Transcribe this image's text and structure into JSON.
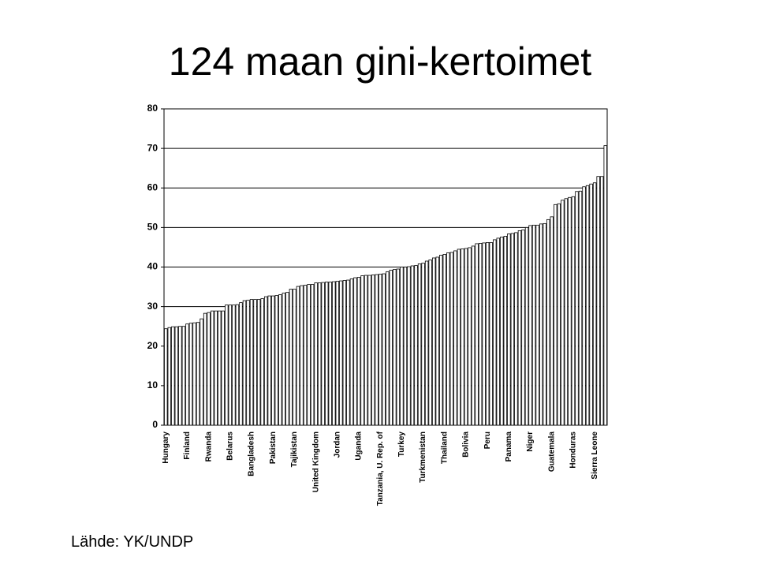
{
  "chart_data": {
    "type": "bar",
    "title": "124 maan gini-kertoimet",
    "source": "Lähde: YK/UNDP",
    "categories": [
      "Hungary",
      null,
      null,
      null,
      null,
      null,
      "Finland",
      null,
      null,
      null,
      null,
      null,
      "Rwanda",
      null,
      null,
      null,
      null,
      null,
      "Belarus",
      null,
      null,
      null,
      null,
      null,
      "Bangladesh",
      null,
      null,
      null,
      null,
      null,
      "Pakistan",
      null,
      null,
      null,
      null,
      null,
      "Tajikistan",
      null,
      null,
      null,
      null,
      null,
      "United Kingdom",
      null,
      null,
      null,
      null,
      null,
      "Jordan",
      null,
      null,
      null,
      null,
      null,
      "Uganda",
      null,
      null,
      null,
      null,
      null,
      "Tanzania, U. Rep. of",
      null,
      null,
      null,
      null,
      null,
      "Turkey",
      null,
      null,
      null,
      null,
      null,
      "Turkmenistan",
      null,
      null,
      null,
      null,
      null,
      "Thailand",
      null,
      null,
      null,
      null,
      null,
      "Bolivia",
      null,
      null,
      null,
      null,
      null,
      "Peru",
      null,
      null,
      null,
      null,
      null,
      "Panama",
      null,
      null,
      null,
      null,
      null,
      "Niger",
      null,
      null,
      null,
      null,
      null,
      "Guatemala",
      null,
      null,
      null,
      null,
      null,
      "Honduras",
      null,
      null,
      null,
      null,
      null,
      "Sierra Leone",
      null,
      null,
      null
    ],
    "values": [
      24.4,
      24.7,
      24.9,
      24.9,
      25.0,
      25.0,
      25.6,
      25.8,
      25.9,
      26.0,
      26.9,
      28.3,
      28.5,
      28.9,
      28.9,
      28.9,
      28.9,
      30.4,
      30.4,
      30.4,
      30.5,
      31.0,
      31.5,
      31.6,
      31.8,
      31.8,
      31.8,
      32.0,
      32.5,
      32.7,
      32.7,
      32.8,
      33.0,
      33.4,
      33.6,
      34.4,
      34.4,
      35.1,
      35.3,
      35.4,
      35.6,
      35.6,
      36.0,
      36.0,
      36.1,
      36.2,
      36.2,
      36.3,
      36.4,
      36.5,
      36.6,
      36.7,
      37.0,
      37.3,
      37.4,
      37.8,
      37.9,
      37.9,
      38.0,
      38.1,
      38.2,
      38.3,
      38.8,
      39.2,
      39.4,
      39.5,
      40.0,
      40.0,
      40.1,
      40.3,
      40.4,
      40.8,
      41.0,
      41.5,
      41.8,
      42.3,
      42.5,
      43.0,
      43.2,
      43.6,
      43.7,
      44.1,
      44.5,
      44.6,
      44.7,
      44.9,
      45.3,
      45.9,
      46.0,
      46.1,
      46.2,
      46.2,
      46.9,
      47.3,
      47.6,
      47.8,
      48.4,
      48.5,
      48.7,
      49.2,
      49.4,
      50.0,
      50.5,
      50.6,
      50.6,
      50.9,
      51.0,
      52.0,
      52.7,
      55.8,
      56.0,
      56.9,
      57.3,
      57.6,
      57.8,
      59.1,
      59.2,
      60.3,
      60.6,
      61.0,
      61.3,
      62.9,
      62.9,
      70.7
    ],
    "color": "#ffffff",
    "ylim": [
      0,
      80
    ],
    "yticks": [
      0,
      10,
      20,
      30,
      40,
      50,
      60,
      70,
      80
    ],
    "grid": true
  }
}
